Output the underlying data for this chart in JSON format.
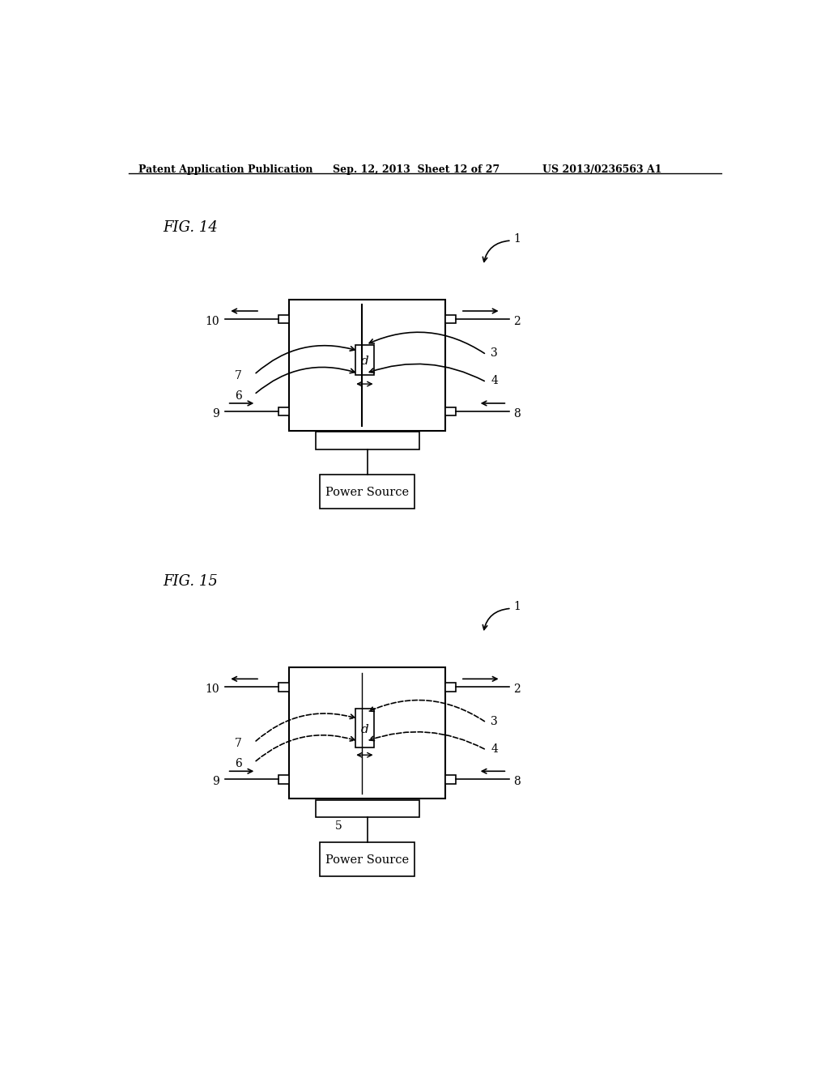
{
  "bg_color": "#ffffff",
  "header_left": "Patent Application Publication",
  "header_mid": "Sep. 12, 2013  Sheet 12 of 27",
  "header_right": "US 2013/0236563 A1",
  "fig14_label": "FIG. 14",
  "fig15_label": "FIG. 15",
  "power_source_text": "Power Source",
  "label_d": "d"
}
